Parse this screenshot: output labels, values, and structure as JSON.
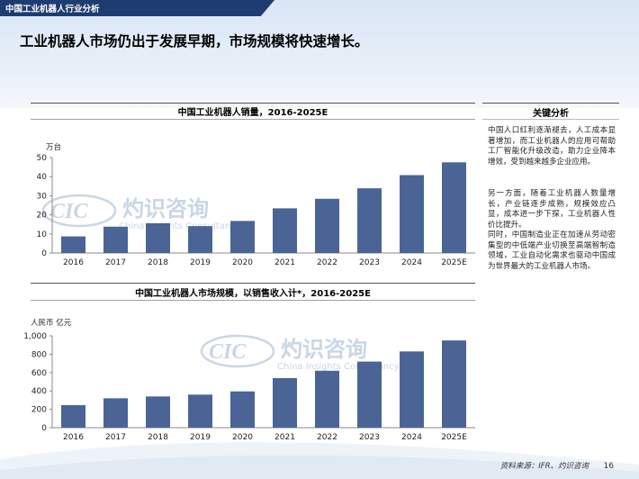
{
  "header": {
    "section_label": "中国工业机器人行业分析",
    "headline": "工业机器人市场仍出于发展早期，市场规模将快速增长。"
  },
  "watermark": {
    "logo_text": "CIC",
    "cn_text": "灼识咨询",
    "en_text": "China Insights Consultancy"
  },
  "side_panel": {
    "title": "关键分析",
    "paragraphs": [
      "中国人口红利逐渐褪去，人工成本显著增加，而工业机器人的应用可帮助工厂智能化升级改造，助力企业降本增效，受到越来越多企业应用。",
      "另一方面，随着工业机器人数量增长，产业链逐步成熟，规模效应凸显，成本进一步下探，工业机器人性价比提升。",
      "同时，中国制造业正在加速从劳动密集型的中低端产业切换至高端智制造领域，工业自动化需求也驱动中国成为世界最大的工业机器人市场。"
    ]
  },
  "footer": {
    "source": "资料来源：IFR、灼识咨询",
    "page_number": "16"
  },
  "colors": {
    "bar": "#4a6595",
    "topbar": "#1f3c70",
    "watermark": "#c9d6e5"
  },
  "chart_data": [
    {
      "type": "bar",
      "title": "中国工业机器人销量，2016-2025E",
      "ylabel": "万台",
      "categories": [
        "2016",
        "2017",
        "2018",
        "2019",
        "2020",
        "2021",
        "2022",
        "2023",
        "2024",
        "2025E"
      ],
      "values": [
        8.7,
        13.8,
        15.6,
        14.1,
        16.8,
        23.4,
        28.4,
        33.9,
        40.8,
        47.5
      ],
      "ylim": [
        0,
        50
      ],
      "yticks": [
        "0",
        "10",
        "20",
        "30",
        "40",
        "50"
      ],
      "grid": false
    },
    {
      "type": "bar",
      "title": "中国工业机器人市场规模，以销售收入计*，2016-2025E",
      "ylabel": "人民币 亿元",
      "categories": [
        "2016",
        "2017",
        "2018",
        "2019",
        "2020",
        "2021",
        "2022",
        "2023",
        "2024",
        "2025E"
      ],
      "values": [
        245,
        320,
        340,
        360,
        395,
        540,
        620,
        720,
        830,
        950
      ],
      "ylim": [
        0,
        1000
      ],
      "yticks": [
        "0",
        "200",
        "400",
        "600",
        "800",
        "1,000"
      ],
      "grid": false
    }
  ]
}
